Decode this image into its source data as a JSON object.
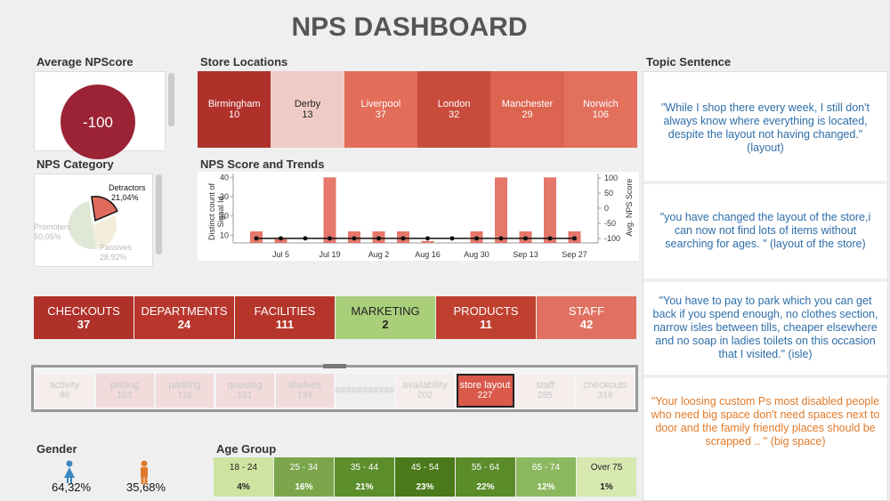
{
  "title": "NPS DASHBOARD",
  "average_nps": {
    "title": "Average NPScore",
    "value": -100,
    "color": "#9b2335"
  },
  "store_locations": {
    "title": "Store Locations",
    "items": [
      {
        "name": "Birmingham",
        "count": 10,
        "color": "#b0302a"
      },
      {
        "name": "Derby",
        "count": 13,
        "color": "#f0cbc6"
      },
      {
        "name": "Liverpool",
        "count": 37,
        "color": "#e26d5a"
      },
      {
        "name": "London",
        "count": 32,
        "color": "#c94b3b"
      },
      {
        "name": "Manchester",
        "count": 29,
        "color": "#dc6450"
      },
      {
        "name": "Norwich",
        "count": 106,
        "color": "#e3705d"
      }
    ]
  },
  "nps_category": {
    "title": "NPS Category",
    "slices": [
      {
        "name": "Detractors",
        "value": 21.04,
        "label": "21,04%",
        "color": "#e06b5d"
      },
      {
        "name": "Passives",
        "value": 28.92,
        "label": "28,92%",
        "color": "#f3eedb"
      },
      {
        "name": "Promoters",
        "value": 50.05,
        "label": "50,05%",
        "color": "#dfe8d6"
      }
    ]
  },
  "trend": {
    "title": "NPS Score and Trends",
    "ylabel": "Distinct count of Signal Id",
    "y2label": "Avg. NPS Score",
    "categories": [
      null,
      "Jul 5",
      null,
      "Jul 19",
      null,
      "Aug 2",
      null,
      "Aug 16",
      null,
      "Aug 30",
      null,
      "Sep 13",
      null,
      "Sep 27"
    ],
    "bars": [
      12,
      8,
      null,
      40,
      12,
      12,
      12,
      7,
      null,
      12,
      40,
      12,
      40,
      12
    ],
    "line": [
      -100,
      -100,
      -100,
      -100,
      -100,
      -100,
      -100,
      -100,
      -100,
      -100,
      -100,
      -100,
      -100,
      -100
    ],
    "bar_color": "#e5776b",
    "line_color": "#111111",
    "ylim": [
      6,
      42
    ],
    "yticks": [
      10,
      20,
      30,
      40
    ],
    "y2lim": [
      -115,
      115
    ],
    "y2ticks": [
      100,
      50,
      0,
      -50,
      -100
    ]
  },
  "categories": [
    {
      "name": "CHECKOUTS",
      "count": 37,
      "color": "#b0302a"
    },
    {
      "name": "DEPARTMENTS",
      "count": 24,
      "color": "#b8362c"
    },
    {
      "name": "FACILITIES",
      "count": 111,
      "color": "#b5352b"
    },
    {
      "name": "MARKETING",
      "count": 2,
      "color": "#a9cf7b"
    },
    {
      "name": "PRODUCTS",
      "count": 11,
      "color": "#c0402f"
    },
    {
      "name": "STAFF",
      "count": 42,
      "color": "#e07060"
    }
  ],
  "subtopics": [
    {
      "label": "activity",
      "count": 86,
      "color": "#f6eded"
    },
    {
      "label": "pricing",
      "count": 103,
      "color": "#f1dbdb"
    },
    {
      "label": "parking",
      "count": 116,
      "color": "#f1dbdb"
    },
    {
      "label": "queuing",
      "count": 121,
      "color": "#f1dbdb"
    },
    {
      "label": "shelves",
      "count": 134,
      "color": "#f1dbdb"
    },
    {
      "label": "###########",
      "color": "#efefef"
    },
    {
      "label": "availability",
      "count": 202,
      "color": "#f6eded"
    },
    {
      "label": "store layout",
      "count": 227,
      "color": "#d9594a",
      "selected": true
    },
    {
      "label": "staff",
      "count": 285,
      "color": "#f6eded"
    },
    {
      "label": "checkouts",
      "count": 319,
      "color": "#f6eded"
    }
  ],
  "gender": {
    "title": "Gender",
    "female": "64,32%",
    "male": "35,68%"
  },
  "age_group": {
    "title": "Age Group",
    "items": [
      {
        "range": "18 - 24",
        "share": "4%",
        "color": "#cfe3a0",
        "text": "#222"
      },
      {
        "range": "25 - 34",
        "share": "16%",
        "color": "#7ba64b",
        "text": "#fff"
      },
      {
        "range": "35 - 44",
        "share": "21%",
        "color": "#5c8e2c",
        "text": "#fff"
      },
      {
        "range": "45 - 54",
        "share": "23%",
        "color": "#4a7a1a",
        "text": "#fff"
      },
      {
        "range": "55 - 64",
        "share": "22%",
        "color": "#5a8c2a",
        "text": "#fff"
      },
      {
        "range": "65 - 74",
        "share": "12%",
        "color": "#8cb860",
        "text": "#fff"
      },
      {
        "range": "Over 75",
        "share": "1%",
        "color": "#d6e8b0",
        "text": "#222"
      }
    ]
  },
  "topic_sentence": {
    "title": "Topic Sentence",
    "quotes": [
      {
        "text": "\"While I shop there every week, I still don't always know where everything is located, despite the layout not having changed.\" (layout)",
        "color": "#2f6ea8"
      },
      {
        "text": "\"you have changed the layout of the store,i can now not find lots of items without searching for ages. \" (layout of the store)",
        "color": "#2f6ea8"
      },
      {
        "text": "\"You have to pay to park which you can get back if you spend enough, no clothes section, narrow isles between tills, cheaper elsewhere and no soap in ladies toilets on this occasion that I visited.\" (isle)",
        "color": "#2f6ea8"
      },
      {
        "text": "\"Your loosing custom  Ps most disabled people who need big space don't need spaces next to door and the family friendly places should be scrapped .. \" (big space)",
        "color": "#e07a2a"
      }
    ]
  }
}
